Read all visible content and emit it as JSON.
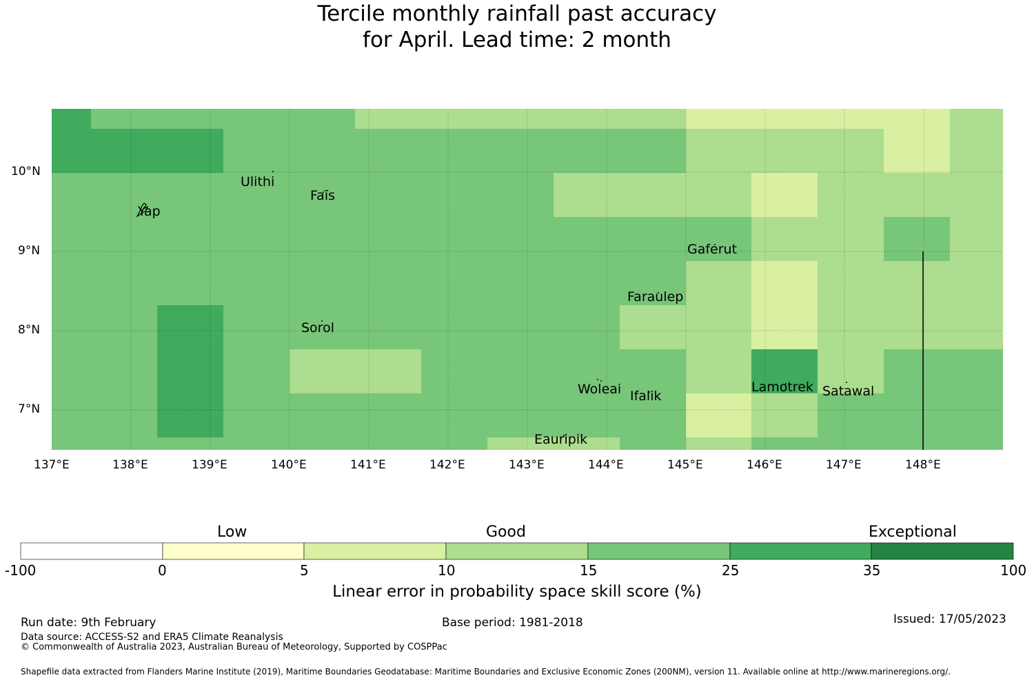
{
  "title": {
    "line1": "Tercile monthly rainfall past accuracy",
    "line2": "for April. Lead time: 2 month"
  },
  "map": {
    "lon_range": [
      137,
      149
    ],
    "lat_range": [
      6.5,
      10.8
    ],
    "lon_ticks": [
      "137°E",
      "138°E",
      "139°E",
      "140°E",
      "141°E",
      "142°E",
      "143°E",
      "144°E",
      "145°E",
      "146°E",
      "147°E",
      "148°E"
    ],
    "lat_ticks": [
      "10°N",
      "9°N",
      "8°N",
      "7°N"
    ],
    "places": [
      {
        "name": "Ulithi",
        "lon": 139.75,
        "lat": 9.87
      },
      {
        "name": "Faīs",
        "lon": 140.45,
        "lat": 9.7
      },
      {
        "name": "Yap",
        "lon": 138.2,
        "lat": 9.5
      },
      {
        "name": "Gaferut",
        "lon": 145.35,
        "lat": 9.02
      },
      {
        "name": "Faraulep",
        "lon": 144.65,
        "lat": 8.42
      },
      {
        "name": "Sorol",
        "lon": 140.38,
        "lat": 8.03
      },
      {
        "name": "Woleai",
        "lon": 143.93,
        "lat": 7.28
      },
      {
        "name": "Ifalik",
        "lon": 144.5,
        "lat": 7.18
      },
      {
        "name": "Lamotrek",
        "lon": 146.25,
        "lat": 7.3
      },
      {
        "name": "Satawal",
        "lon": 147.05,
        "lat": 7.24
      },
      {
        "name": "Eauripik",
        "lon": 143.45,
        "lat": 6.63
      }
    ]
  },
  "colorbar": {
    "category_labels": [
      "Low",
      "Good",
      "Exceptional"
    ],
    "boundaries": [
      "-100",
      "0",
      "5",
      "10",
      "15",
      "25",
      "35",
      "100"
    ],
    "colors": [
      "#ffffff",
      "#ffffcc",
      "#d9f0a3",
      "#addd8e",
      "#78c679",
      "#41ab5d",
      "#238443"
    ],
    "label": "Linear error in probability space skill score (%)"
  },
  "palette": {
    "c5": "#d9f0a3",
    "c10": "#addd8e",
    "c15": "#78c679",
    "c25": "#41ab5d"
  },
  "footer": {
    "run_date": "Run date: 9th February",
    "base_period": "Base period: 1981-2018",
    "issued": "Issued: 17/05/2023",
    "data_source": "Data source: ACCESS-S2 and ERA5 Climate Reanalysis",
    "copyright": "© Commonwealth of Australia 2023, Australian Bureau of Meteorology, Supported by COSPPac",
    "shapefile": "Shapefile data extracted from Flanders Marine Institute (2019), Maritime Boundaries Geodatabase: Maritime Boundaries and Exclusive Economic Zones (200NM), version 11. Available online at http://www.marineregions.org/."
  }
}
